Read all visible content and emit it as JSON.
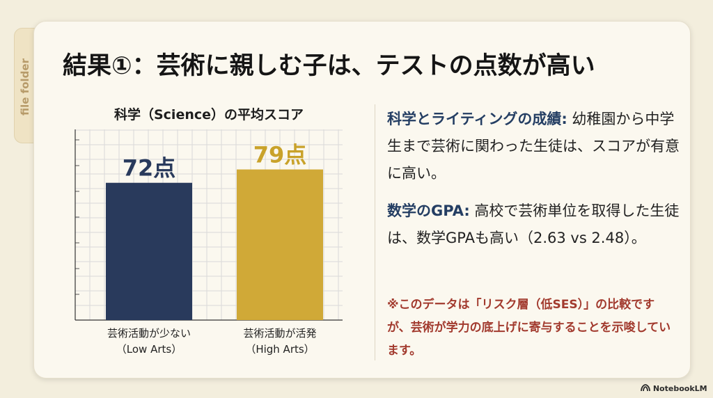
{
  "folder_tab": {
    "label": "file folder"
  },
  "slide": {
    "title": "結果①：芸術に親しむ子は、テストの点数が高い"
  },
  "chart_data": {
    "type": "bar",
    "title": "科学（Science）の平均スコア",
    "categories": [
      [
        "芸術活動が少ない",
        "（Low Arts）"
      ],
      [
        "芸術活動が活発",
        "（High Arts）"
      ]
    ],
    "values": [
      72,
      79
    ],
    "data_labels": [
      "72点",
      "79点"
    ],
    "ylim": [
      0,
      100
    ],
    "grid": true,
    "colors": [
      "#293a5c",
      "#d0a937"
    ],
    "label_colors": [
      "#293a5c",
      "#c9a22a"
    ]
  },
  "text": {
    "p1_heading": "科学とライティングの成績:",
    "p1_body": " 幼稚園から中学生まで芸術に関わった生徒は、スコアが有意に高い。",
    "p2_heading": "数学のGPA:",
    "p2_body": " 高校で芸術単位を取得した生徒は、数学GPAも高い（2.63 vs 2.48）。",
    "note": "※このデータは「リスク層（低SES）」の比較ですが、芸術が学力の底上げに寄与することを示唆しています。"
  },
  "branding": {
    "logo_text": "NotebookLM",
    "logo_icon": "notebook-logo-icon"
  }
}
